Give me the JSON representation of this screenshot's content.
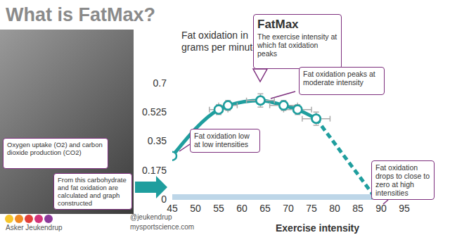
{
  "chart_data": {
    "type": "line",
    "title": "What is FatMax?",
    "y_label": "Fat oxidation in grams per minute",
    "x_label": "Exercise intensity",
    "xlim": [
      45,
      95
    ],
    "xticks": [
      45,
      50,
      55,
      60,
      65,
      70,
      75,
      80,
      85,
      90,
      95
    ],
    "ylim": [
      0,
      0.7
    ],
    "yticks": [
      0,
      0.175,
      0.35,
      0.525,
      0.7
    ],
    "grid": false,
    "series": [
      {
        "x": [
          45,
          55,
          57,
          64,
          69,
          72,
          76
        ],
        "values": [
          0.26,
          0.54,
          0.565,
          0.595,
          0.565,
          0.54,
          0.485
        ],
        "x_err": [
          null,
          2,
          2,
          3,
          3,
          3,
          3
        ],
        "y_err": [
          null,
          0.03,
          0.03,
          0.04,
          0.03,
          0.03,
          0.04
        ],
        "color": "#1f9e9e",
        "line_style": "solid",
        "marker": "circle"
      },
      {
        "x": [
          76,
          89
        ],
        "values": [
          0.485,
          0
        ],
        "x_err": [
          null,
          null
        ],
        "y_err": [
          null,
          null
        ],
        "color": "#1f9e9e",
        "line_style": "dashed",
        "marker": "circle"
      }
    ],
    "annotations": [
      {
        "title": "FatMax",
        "text": "The exercise intensity at which fat oxidation peaks"
      },
      {
        "text": "Fat oxidation peaks at moderate intensity"
      },
      {
        "text": "Fat oxidation low at low intensities"
      },
      {
        "text": "Fat oxidation drops to close to zero at high intensities"
      }
    ],
    "panel_texts": [
      "Oxygen uptake (O2) and carbon dioxide production (CO2)",
      "From this carbohydrate and fat oxidation are calculated and graph constructed"
    ],
    "credits": [
      "Asker Jeukendrup",
      "@jeukendrup",
      "mysportscience.com"
    ]
  }
}
